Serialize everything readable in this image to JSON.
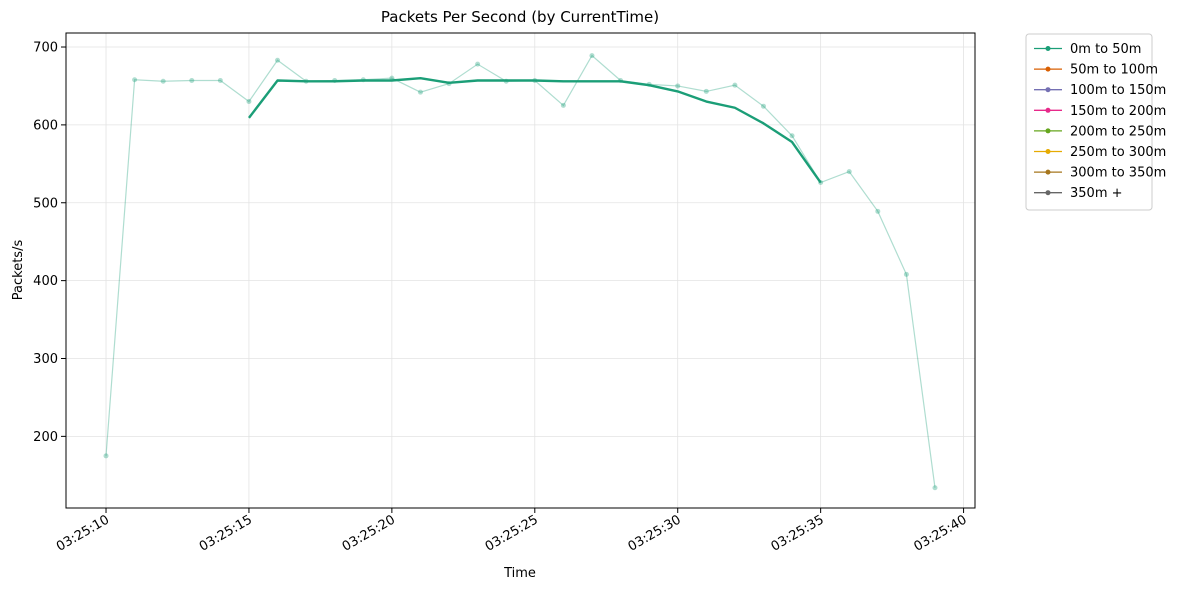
{
  "chart_data": {
    "type": "line",
    "title": "Packets Per Second (by CurrentTime)",
    "xlabel": "Time",
    "ylabel": "Packets/s",
    "x_start": "03:25:10",
    "xlim": [
      "03:25:08.6",
      "03:25:40.4"
    ],
    "ylim": [
      108,
      718
    ],
    "xticks": [
      "03:25:10",
      "03:25:15",
      "03:25:20",
      "03:25:25",
      "03:25:30",
      "03:25:35",
      "03:25:40"
    ],
    "yticks": [
      200,
      300,
      400,
      500,
      600,
      700
    ],
    "grid": true,
    "legend_position": "outside-right-top",
    "series": [
      {
        "name": "0m to 50m",
        "color": "#1b9e77",
        "x": [
          "03:25:10",
          "03:25:11",
          "03:25:12",
          "03:25:13",
          "03:25:14",
          "03:25:15",
          "03:25:16",
          "03:25:17",
          "03:25:18",
          "03:25:19",
          "03:25:20",
          "03:25:21",
          "03:25:22",
          "03:25:23",
          "03:25:24",
          "03:25:25",
          "03:25:26",
          "03:25:27",
          "03:25:28",
          "03:25:29",
          "03:25:30",
          "03:25:31",
          "03:25:32",
          "03:25:33",
          "03:25:34",
          "03:25:35",
          "03:25:36",
          "03:25:37",
          "03:25:38",
          "03:25:39"
        ],
        "raw_values": [
          175,
          658,
          656,
          657,
          657,
          630,
          683,
          656,
          657,
          658,
          660,
          642,
          653,
          678,
          656,
          657,
          625,
          689,
          657,
          652,
          650,
          643,
          651,
          624,
          586,
          526,
          540,
          489,
          408,
          134
        ],
        "smoothed_x": [
          "03:25:15",
          "03:25:16",
          "03:25:17",
          "03:25:18",
          "03:25:19",
          "03:25:20",
          "03:25:21",
          "03:25:22",
          "03:25:23",
          "03:25:24",
          "03:25:25",
          "03:25:26",
          "03:25:27",
          "03:25:28",
          "03:25:29",
          "03:25:30",
          "03:25:31",
          "03:25:32",
          "03:25:33",
          "03:25:34",
          "03:25:35"
        ],
        "smoothed_values": [
          609,
          657,
          656,
          656,
          657,
          657,
          660,
          654,
          657,
          657,
          657,
          656,
          656,
          656,
          651,
          643,
          630,
          622,
          602,
          578,
          526
        ]
      },
      {
        "name": "50m to 100m",
        "color": "#d95f02"
      },
      {
        "name": "100m to 150m",
        "color": "#7570b3"
      },
      {
        "name": "150m to 200m",
        "color": "#e7298a"
      },
      {
        "name": "200m to 250m",
        "color": "#66a61e"
      },
      {
        "name": "250m to 300m",
        "color": "#e6ab02"
      },
      {
        "name": "300m to 350m",
        "color": "#a6761d"
      },
      {
        "name": "350m +",
        "color": "#666666"
      }
    ]
  }
}
